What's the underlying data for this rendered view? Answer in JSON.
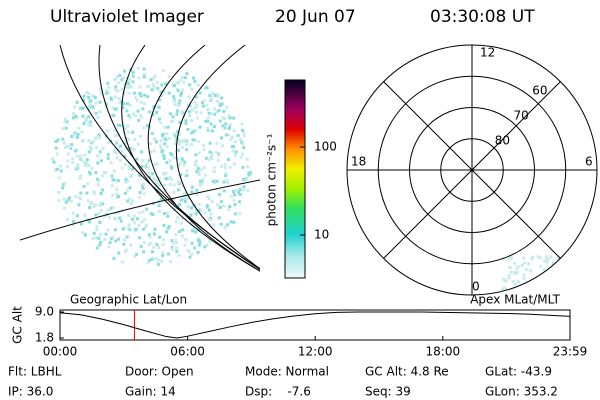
{
  "header": {
    "title": "Ultraviolet Imager",
    "date": "20 Jun 07",
    "time": "03:30:08 UT"
  },
  "colorbar": {
    "label": "photon cm⁻²s⁻¹",
    "ticks": [
      10,
      100
    ]
  },
  "polar": {
    "mlt_labels": {
      "top": "12",
      "left": "18",
      "right": "6",
      "bottom": "0"
    },
    "lat_rings": [
      60,
      70,
      80
    ]
  },
  "panels": {
    "left": "Geographic Lat/Lon",
    "right": "Apex MLat/MLT"
  },
  "altitude": {
    "ylabel": "GC Alt",
    "ylim": [
      1.8,
      9.0
    ],
    "yticks": [
      {
        "value": 9.0,
        "label": "9.0"
      },
      {
        "value": 1.8,
        "label": "1.8"
      }
    ],
    "xlim": [
      0,
      23.98
    ],
    "xticks": [
      {
        "value": 0,
        "label": "00:00"
      },
      {
        "value": 6,
        "label": "06:00"
      },
      {
        "value": 12,
        "label": "12:00"
      },
      {
        "value": 18,
        "label": "18:00"
      },
      {
        "value": 23.98,
        "label": "23:59"
      }
    ],
    "x": [
      0,
      1,
      2,
      3,
      4,
      5,
      5.5,
      6,
      7,
      8,
      9,
      10,
      11,
      12,
      13,
      14,
      15,
      16,
      17,
      18,
      19,
      20,
      21,
      22,
      23,
      23.98
    ],
    "values": [
      8.8,
      8.2,
      7.0,
      5.5,
      3.8,
      2.2,
      1.8,
      2.3,
      3.6,
      4.9,
      6.1,
      7.1,
      7.9,
      8.5,
      8.9,
      9.0,
      9.0,
      9.0,
      9.0,
      8.9,
      8.8,
      8.7,
      8.6,
      8.4,
      8.1,
      7.8
    ],
    "current": 3.5
  },
  "footer": [
    [
      "Flt: LBHL",
      "Door: Open",
      "Mode: Normal",
      "GC Alt: 4.8 Re",
      "GLat: -43.9"
    ],
    [
      "IP: 36.0",
      "Gain: 14",
      "Dsp:    -7.6",
      "Seq: 39",
      "GLon: 353.2"
    ]
  ]
}
